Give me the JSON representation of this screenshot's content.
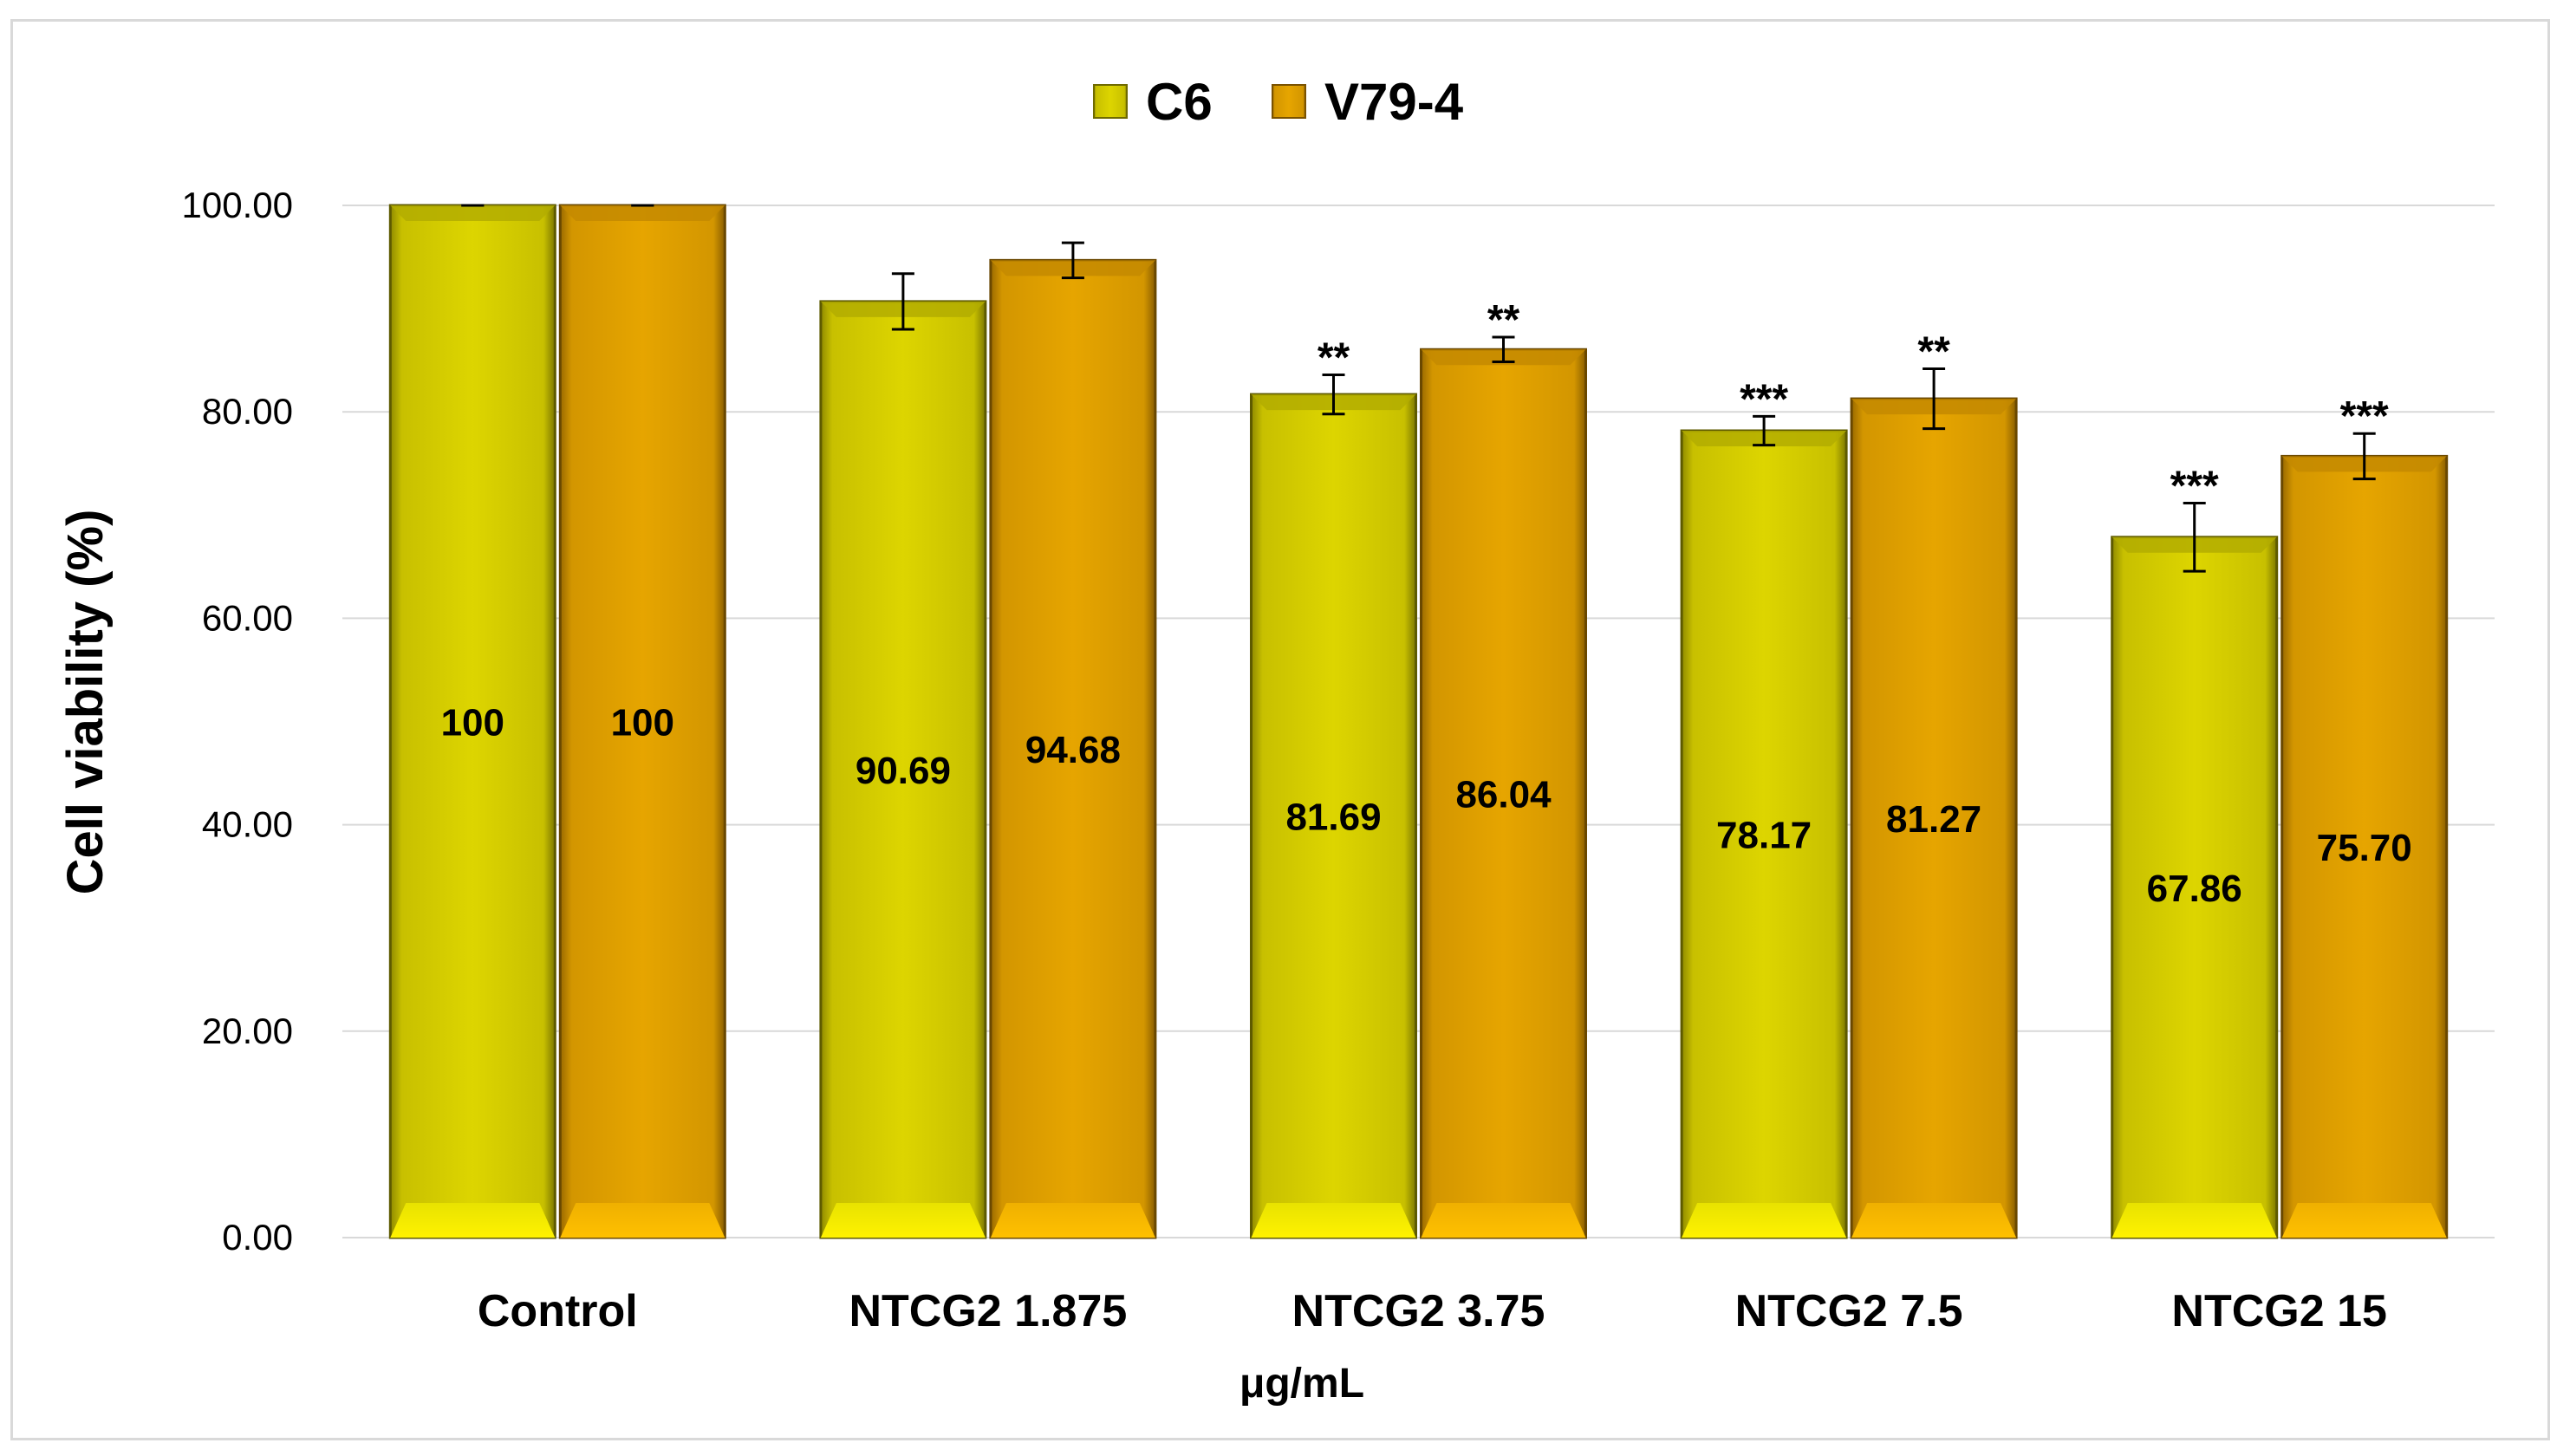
{
  "chart_data": {
    "type": "bar",
    "categories": [
      "Control",
      "NTCG2 1.875",
      "NTCG2 3.75",
      "NTCG2 7.5",
      "NTCG2 15"
    ],
    "series": [
      {
        "name": "C6",
        "color": "#d4cc00",
        "values": [
          100,
          90.69,
          81.69,
          78.17,
          67.86
        ],
        "value_labels": [
          "100",
          "90.69",
          "81.69",
          "78.17",
          "67.86"
        ],
        "errors": [
          0,
          2.7,
          1.9,
          1.4,
          3.3
        ],
        "significance": [
          "",
          "",
          "**",
          "***",
          "***"
        ]
      },
      {
        "name": "V79-4",
        "color": "#e0a000",
        "values": [
          100,
          94.68,
          86.04,
          81.27,
          75.7
        ],
        "value_labels": [
          "100",
          "94.68",
          "86.04",
          "81.27",
          "75.70"
        ],
        "errors": [
          0,
          1.7,
          1.2,
          2.9,
          2.2
        ],
        "significance": [
          "",
          "",
          "**",
          "**",
          "***"
        ]
      }
    ],
    "ylabel": "Cell viability (%)",
    "xlabel": "μg/mL",
    "ylim": [
      0,
      100
    ],
    "yticks": [
      "0.00",
      "20.00",
      "40.00",
      "60.00",
      "80.00",
      "100.00"
    ],
    "grid": true,
    "legend_position": "top-center"
  }
}
